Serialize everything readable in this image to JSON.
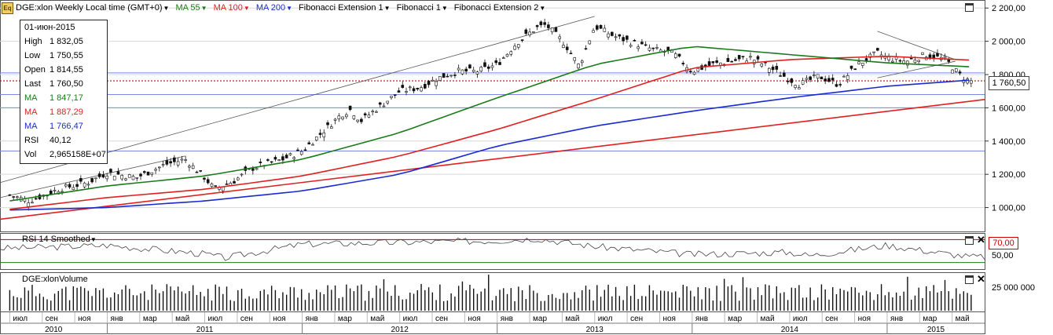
{
  "header": {
    "symbol_label": "DGE:xlon Weekly Local time (GMT+0)",
    "ma55_label": "MA 55",
    "ma100_label": "MA 100",
    "ma200_label": "MA 200",
    "fib_ext1_label": "Fibonacci Extension 1",
    "fib1_label": "Fibonacci 1",
    "fib_ext2_label": "Fibonacci Extension 2",
    "icon": "eq-chart-icon"
  },
  "infobox": {
    "date": "01-июн-2015",
    "rows": [
      {
        "label": "High",
        "value": "1 832,05"
      },
      {
        "label": "Low",
        "value": "1 750,55"
      },
      {
        "label": "Open",
        "value": "1 814,55"
      },
      {
        "label": "Last",
        "value": "1 760,50"
      },
      {
        "label": "MA",
        "value": "1 847,17"
      },
      {
        "label": "MA",
        "value": "1 887,29"
      },
      {
        "label": "MA",
        "value": "1 766,47"
      },
      {
        "label": "RSI",
        "value": "40,12"
      },
      {
        "label": "Vol",
        "value": "2,965158E+07"
      }
    ]
  },
  "price_tag": "1 760,50",
  "rsi_panel": {
    "title": "RSI 14 Smoothed",
    "level_tag": "70,00",
    "tick": "50,00"
  },
  "volume_panel": {
    "title": "DGE:xlonVolume",
    "tick": "25 000 000"
  },
  "colors": {
    "ma55": "#1a7a1a",
    "ma100": "#e02020",
    "ma200": "#1a2ad0",
    "rsi_level": "#c00000"
  },
  "chart_data": {
    "type": "candlestick",
    "y_ticks": [
      "2 200,00",
      "2 000,00",
      "1 800,00",
      "1 600,00",
      "1 400,00",
      "1 200,00",
      "1 000,00"
    ],
    "ylim": [
      880,
      2220
    ],
    "month_labels": [
      "июл",
      "сен",
      "ноя",
      "янв",
      "мар",
      "май",
      "июл",
      "сен",
      "ноя",
      "янв",
      "мар",
      "май",
      "июл",
      "сен",
      "ноя",
      "янв",
      "мар",
      "май",
      "июл",
      "сен",
      "ноя",
      "янв",
      "мар",
      "май",
      "июл",
      "сен",
      "ноя",
      "янв",
      "мар",
      "май"
    ],
    "year_labels": [
      "2010",
      "2011",
      "2012",
      "2013",
      "2014",
      "2015"
    ],
    "close_path": [
      [
        2010.5,
        1075
      ],
      [
        2010.6,
        1040
      ],
      [
        2010.75,
        1110
      ],
      [
        2010.9,
        1150
      ],
      [
        2011.0,
        1210
      ],
      [
        2011.15,
        1180
      ],
      [
        2011.3,
        1260
      ],
      [
        2011.4,
        1290
      ],
      [
        2011.5,
        1180
      ],
      [
        2011.55,
        1110
      ],
      [
        2011.65,
        1160
      ],
      [
        2011.75,
        1240
      ],
      [
        2011.9,
        1290
      ],
      [
        2012.0,
        1340
      ],
      [
        2012.1,
        1450
      ],
      [
        2012.2,
        1560
      ],
      [
        2012.25,
        1590
      ],
      [
        2012.3,
        1520
      ],
      [
        2012.4,
        1610
      ],
      [
        2012.5,
        1700
      ],
      [
        2012.6,
        1720
      ],
      [
        2012.7,
        1780
      ],
      [
        2012.8,
        1820
      ],
      [
        2012.9,
        1820
      ],
      [
        2013.0,
        1860
      ],
      [
        2013.1,
        1990
      ],
      [
        2013.2,
        2080
      ],
      [
        2013.25,
        2100
      ],
      [
        2013.35,
        1980
      ],
      [
        2013.42,
        1850
      ],
      [
        2013.5,
        2090
      ],
      [
        2013.6,
        2030
      ],
      [
        2013.7,
        1990
      ],
      [
        2013.8,
        1950
      ],
      [
        2013.9,
        1930
      ],
      [
        2014.0,
        1820
      ],
      [
        2014.1,
        1860
      ],
      [
        2014.2,
        1880
      ],
      [
        2014.3,
        1900
      ],
      [
        2014.4,
        1840
      ],
      [
        2014.5,
        1770
      ],
      [
        2014.55,
        1740
      ],
      [
        2014.65,
        1790
      ],
      [
        2014.75,
        1740
      ],
      [
        2014.85,
        1860
      ],
      [
        2014.95,
        1930
      ],
      [
        2015.0,
        1900
      ],
      [
        2015.1,
        1880
      ],
      [
        2015.2,
        1920
      ],
      [
        2015.3,
        1890
      ],
      [
        2015.37,
        1800
      ],
      [
        2015.42,
        1760
      ]
    ],
    "ma55": [
      [
        2010.5,
        1040
      ],
      [
        2011.0,
        1130
      ],
      [
        2011.5,
        1190
      ],
      [
        2012.0,
        1290
      ],
      [
        2012.5,
        1450
      ],
      [
        2013.0,
        1660
      ],
      [
        2013.5,
        1860
      ],
      [
        2014.0,
        1970
      ],
      [
        2014.5,
        1920
      ],
      [
        2015.0,
        1870
      ],
      [
        2015.42,
        1847
      ]
    ],
    "ma100": [
      [
        2010.5,
        990
      ],
      [
        2011.0,
        1060
      ],
      [
        2011.5,
        1110
      ],
      [
        2012.0,
        1190
      ],
      [
        2012.5,
        1310
      ],
      [
        2013.0,
        1470
      ],
      [
        2013.5,
        1650
      ],
      [
        2014.0,
        1840
      ],
      [
        2014.5,
        1890
      ],
      [
        2015.0,
        1910
      ],
      [
        2015.42,
        1887
      ]
    ],
    "ma200": [
      [
        2010.5,
        985
      ],
      [
        2011.0,
        1000
      ],
      [
        2011.5,
        1040
      ],
      [
        2012.0,
        1100
      ],
      [
        2012.5,
        1200
      ],
      [
        2013.0,
        1370
      ],
      [
        2013.5,
        1490
      ],
      [
        2014.0,
        1580
      ],
      [
        2014.5,
        1660
      ],
      [
        2015.0,
        1730
      ],
      [
        2015.42,
        1766
      ]
    ],
    "rsi": [
      [
        2010.5,
        55
      ],
      [
        2011.0,
        60
      ],
      [
        2011.5,
        45
      ],
      [
        2011.6,
        38
      ],
      [
        2012.0,
        62
      ],
      [
        2012.5,
        65
      ],
      [
        2013.0,
        68
      ],
      [
        2013.2,
        72
      ],
      [
        2013.5,
        58
      ],
      [
        2014.0,
        44
      ],
      [
        2014.5,
        48
      ],
      [
        2014.6,
        42
      ],
      [
        2015.0,
        60
      ],
      [
        2015.42,
        40
      ]
    ]
  }
}
